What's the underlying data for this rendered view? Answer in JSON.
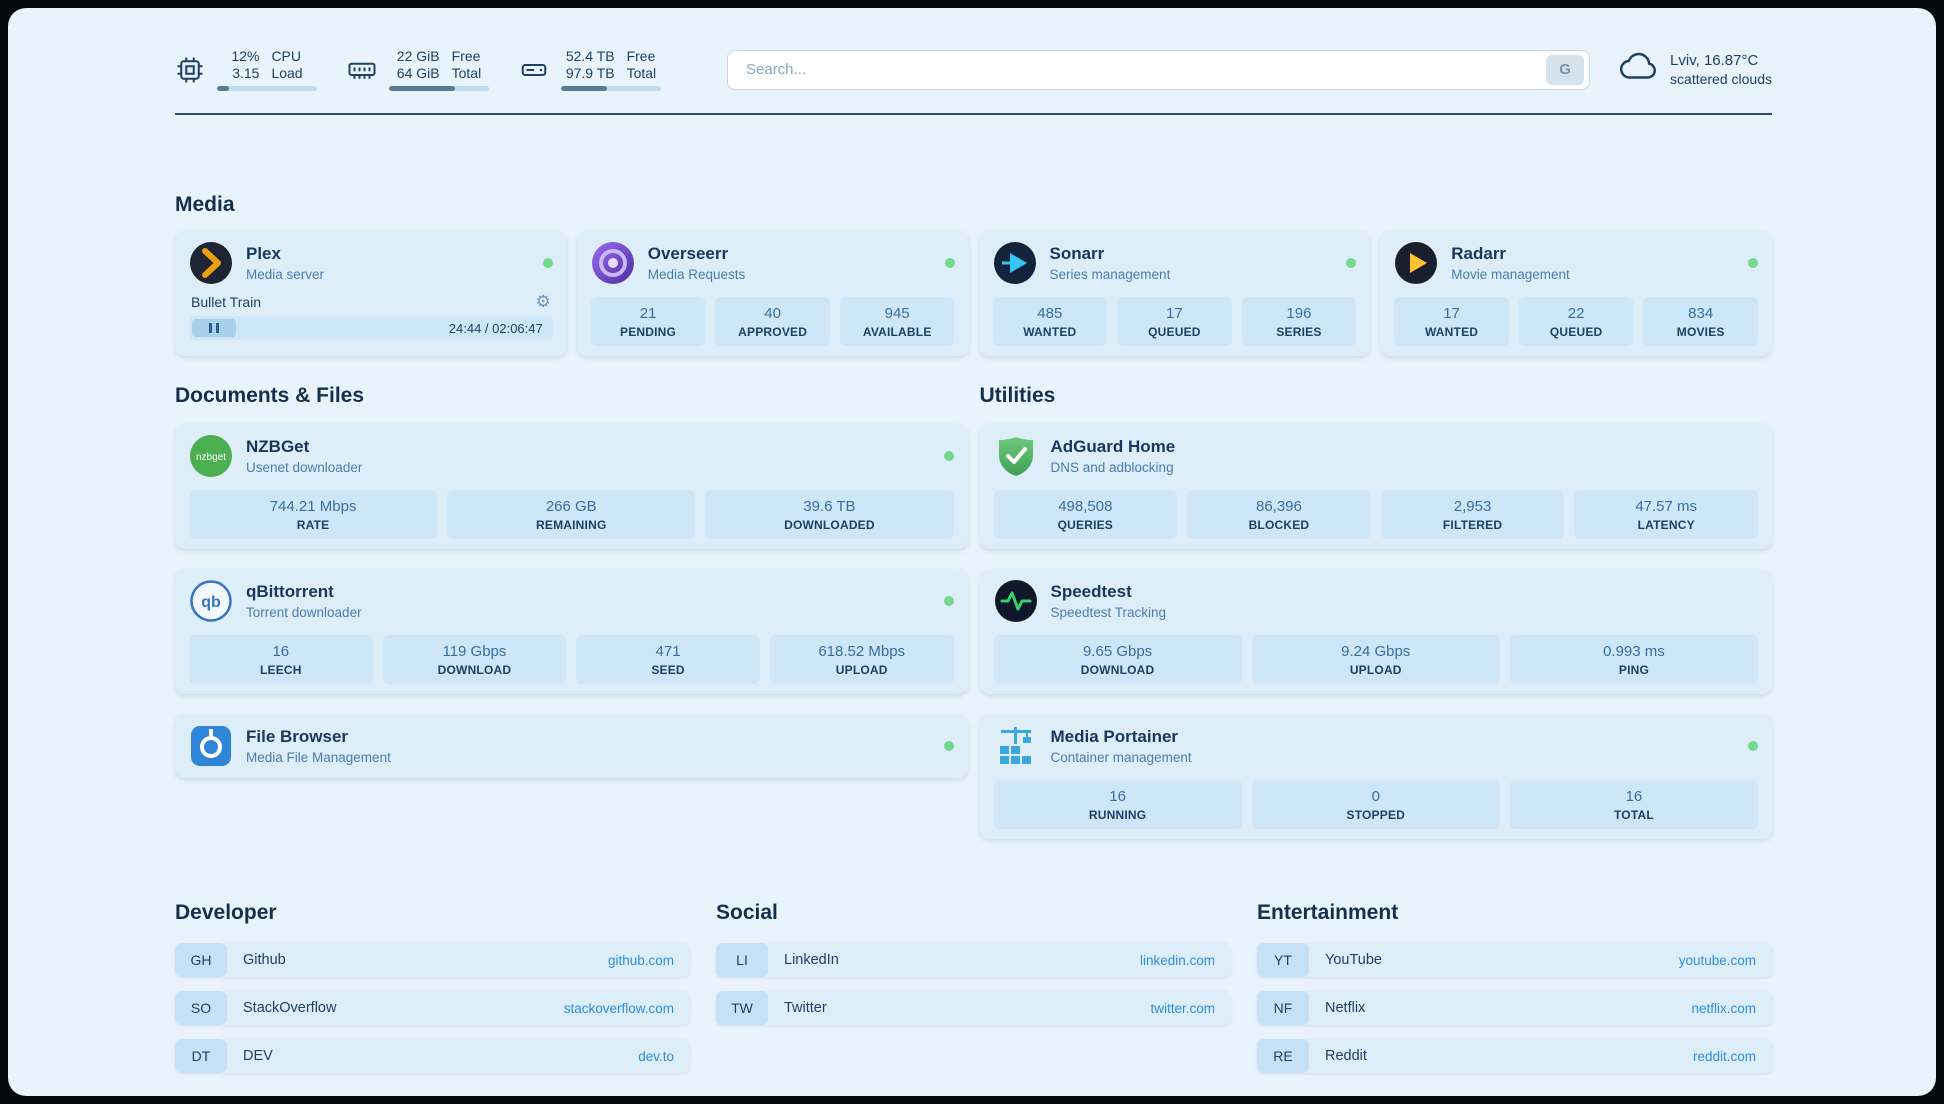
{
  "colors": {
    "status_online": "#72d98c",
    "link": "#2e8edd",
    "accent_bar": "#5a7b97"
  },
  "icons": {
    "gear": "⚙"
  },
  "header": {
    "cpu": {
      "value_top": "12%",
      "label_top": "CPU",
      "value_bottom": "3.15",
      "label_bottom": "Load",
      "bar_percent": 12
    },
    "ram": {
      "value_top": "22 GiB",
      "label_top": "Free",
      "value_bottom": "64 GiB",
      "label_bottom": "Total",
      "bar_percent": 66
    },
    "disk": {
      "value_top": "52.4 TB",
      "label_top": "Free",
      "value_bottom": "97.9 TB",
      "label_bottom": "Total",
      "bar_percent": 46
    },
    "search": {
      "placeholder": "Search...",
      "button_label": "G"
    },
    "weather": {
      "location": "Lviv, 16.87°C",
      "condition": "scattered clouds"
    }
  },
  "sections": {
    "media": {
      "title": "Media",
      "cards": [
        {
          "title": "Plex",
          "subtitle": "Media server",
          "status": "online",
          "player": {
            "track": "Bullet Train",
            "time": "24:44 / 02:06:47"
          }
        },
        {
          "title": "Overseerr",
          "subtitle": "Media Requests",
          "status": "online",
          "stats": [
            {
              "value": "21",
              "label": "PENDING"
            },
            {
              "value": "40",
              "label": "APPROVED"
            },
            {
              "value": "945",
              "label": "AVAILABLE"
            }
          ]
        },
        {
          "title": "Sonarr",
          "subtitle": "Series management",
          "status": "online",
          "stats": [
            {
              "value": "485",
              "label": "WANTED"
            },
            {
              "value": "17",
              "label": "QUEUED"
            },
            {
              "value": "196",
              "label": "SERIES"
            }
          ]
        },
        {
          "title": "Radarr",
          "subtitle": "Movie management",
          "status": "online",
          "stats": [
            {
              "value": "17",
              "label": "WANTED"
            },
            {
              "value": "22",
              "label": "QUEUED"
            },
            {
              "value": "834",
              "label": "MOVIES"
            }
          ]
        }
      ]
    },
    "documents": {
      "title": "Documents & Files",
      "cards": [
        {
          "title": "NZBGet",
          "subtitle": "Usenet downloader",
          "status": "online",
          "stats": [
            {
              "value": "744.21 Mbps",
              "label": "RATE"
            },
            {
              "value": "266 GB",
              "label": "REMAINING"
            },
            {
              "value": "39.6 TB",
              "label": "DOWNLOADED"
            }
          ]
        },
        {
          "title": "qBittorrent",
          "subtitle": "Torrent downloader",
          "status": "online",
          "stats": [
            {
              "value": "16",
              "label": "LEECH"
            },
            {
              "value": "119 Gbps",
              "label": "DOWNLOAD"
            },
            {
              "value": "471",
              "label": "SEED"
            },
            {
              "value": "618.52 Mbps",
              "label": "UPLOAD"
            }
          ]
        },
        {
          "title": "File Browser",
          "subtitle": "Media File Management",
          "status": "online",
          "stats": []
        }
      ]
    },
    "utilities": {
      "title": "Utilities",
      "cards": [
        {
          "title": "AdGuard Home",
          "subtitle": "DNS and adblocking",
          "stats": [
            {
              "value": "498,508",
              "label": "QUERIES"
            },
            {
              "value": "86,396",
              "label": "BLOCKED"
            },
            {
              "value": "2,953",
              "label": "FILTERED"
            },
            {
              "value": "47.57 ms",
              "label": "LATENCY"
            }
          ]
        },
        {
          "title": "Speedtest",
          "subtitle": "Speedtest Tracking",
          "stats": [
            {
              "value": "9.65 Gbps",
              "label": "DOWNLOAD"
            },
            {
              "value": "9.24 Gbps",
              "label": "UPLOAD"
            },
            {
              "value": "0.993 ms",
              "label": "PING"
            }
          ]
        },
        {
          "title": "Media Portainer",
          "subtitle": "Container management",
          "status": "online",
          "stats": [
            {
              "value": "16",
              "label": "RUNNING"
            },
            {
              "value": "0",
              "label": "STOPPED"
            },
            {
              "value": "16",
              "label": "TOTAL"
            }
          ]
        }
      ]
    },
    "bookmarks": [
      {
        "title": "Developer",
        "items": [
          {
            "abbr": "GH",
            "name": "Github",
            "url": "github.com"
          },
          {
            "abbr": "SO",
            "name": "StackOverflow",
            "url": "stackoverflow.com"
          },
          {
            "abbr": "DT",
            "name": "DEV",
            "url": "dev.to"
          }
        ]
      },
      {
        "title": "Social",
        "items": [
          {
            "abbr": "LI",
            "name": "LinkedIn",
            "url": "linkedin.com"
          },
          {
            "abbr": "TW",
            "name": "Twitter",
            "url": "twitter.com"
          }
        ]
      },
      {
        "title": "Entertainment",
        "items": [
          {
            "abbr": "YT",
            "name": "YouTube",
            "url": "youtube.com"
          },
          {
            "abbr": "NF",
            "name": "Netflix",
            "url": "netflix.com"
          },
          {
            "abbr": "RE",
            "name": "Reddit",
            "url": "reddit.com"
          }
        ]
      }
    ]
  }
}
